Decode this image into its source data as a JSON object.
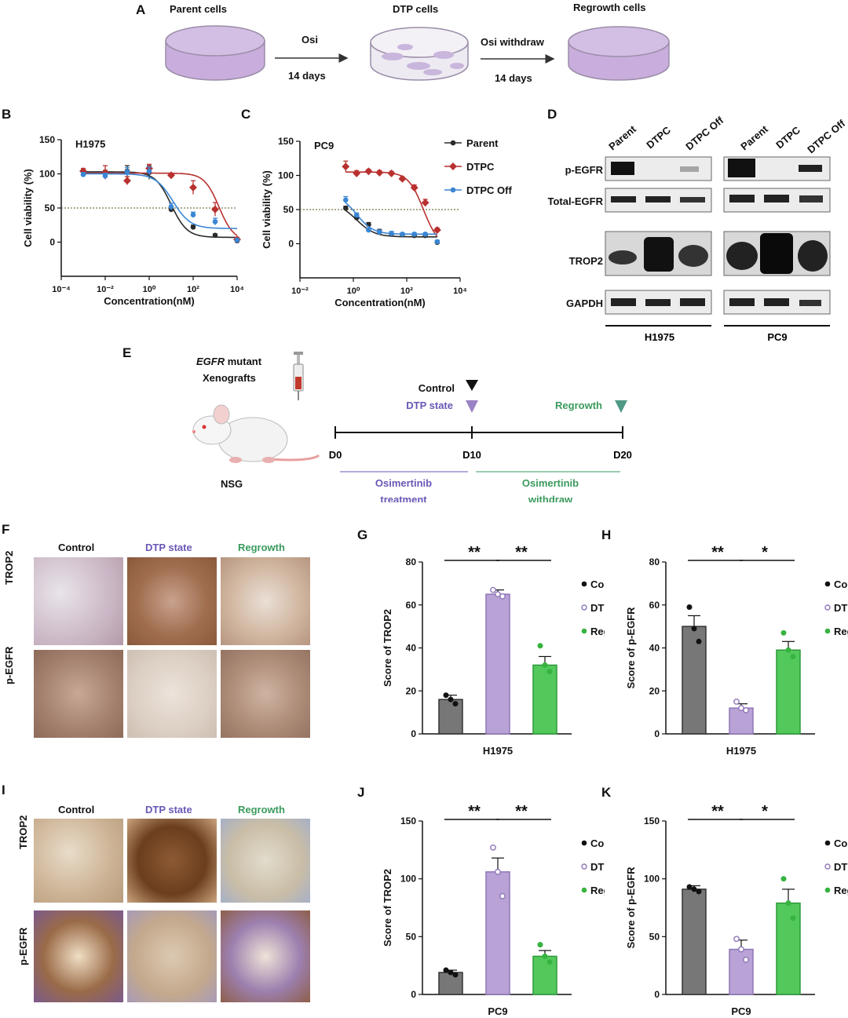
{
  "colors": {
    "parent": "#2b2b2b",
    "dtpc": "#b8312f",
    "dtpc_off": "#3a86d4",
    "control": "#777777",
    "dtp": "#b9a2d6",
    "regrowth": "#52c95a",
    "dtp_text": "#6a57b5",
    "regrowth_text": "#3a9a5c",
    "dish": "#c9addc"
  },
  "panel_a": {
    "letter": "A",
    "stage1": "Parent cells",
    "stage2": "DTP cells",
    "stage3": "Regrowth cells",
    "arrow1_top": "Osi",
    "arrow1_bottom": "14 days",
    "arrow2_top": "Osi withdraw",
    "arrow2_bottom": "14 days"
  },
  "panel_b": {
    "letter": "B"
  },
  "panel_c": {
    "letter": "C"
  },
  "panel_d": {
    "letter": "D",
    "lane_labels": [
      "Parent",
      "DTPC",
      "DTPC Off",
      "Parent",
      "DTPC",
      "DTPC Off"
    ],
    "row_labels": [
      "p-EGFR",
      "Total-EGFR",
      "TROP2",
      "GAPDH"
    ],
    "group_labels": [
      "H1975",
      "PC9"
    ]
  },
  "panel_e": {
    "letter": "E",
    "model_title_italic": "EGFR",
    "model_title_rest": " mutant",
    "model_title_line2": "Xenografts",
    "mouse_label": "NSG",
    "markers": [
      "Control",
      "DTP state",
      "Regrowth"
    ],
    "ticks": [
      "D0",
      "D10",
      "D20"
    ],
    "phase1_line1": "Osimertinib",
    "phase1_line2": "treatment",
    "phase2_line1": "Osimertinib",
    "phase2_line2": "withdraw"
  },
  "panel_f": {
    "letter": "F",
    "columns": [
      "Control",
      "DTP state",
      "Regrowth"
    ],
    "rows": [
      "TROP2",
      "p-EGFR"
    ]
  },
  "panel_i": {
    "letter": "I",
    "columns": [
      "Control",
      "DTP state",
      "Regrowth"
    ],
    "rows": [
      "TROP2",
      "p-EGFR"
    ]
  },
  "legend_bar": [
    "Control",
    "DTP state",
    "Regrowth"
  ],
  "chart_data": [
    {
      "panel": "B",
      "type": "scatter",
      "title": "H1975",
      "xlabel": "Concentration(nM)",
      "ylabel": "Cell viability (%)",
      "xscale": "log",
      "xlim": [
        0.0001,
        10000
      ],
      "ylim": [
        -50,
        150
      ],
      "x_ticks": [
        "10⁻⁴",
        "10⁻²",
        "10⁰",
        "10²",
        "10⁴"
      ],
      "y_ticks": [
        "0",
        "50",
        "100",
        "150"
      ],
      "reference_line": 50,
      "series": [
        {
          "name": "Parent",
          "x": [
            0.001,
            0.01,
            0.1,
            1,
            10,
            100,
            1000,
            10000
          ],
          "y": [
            103,
            101,
            104,
            102,
            48,
            22,
            10,
            2
          ],
          "err": [
            3,
            4,
            8,
            10,
            4,
            3,
            2,
            2
          ],
          "fit": {
            "ic50": 10,
            "hill": 1.2,
            "top": 103,
            "bottom": 7
          }
        },
        {
          "name": "DTPC",
          "x": [
            0.001,
            0.01,
            0.1,
            1,
            10,
            100,
            1000,
            10000
          ],
          "y": [
            104,
            102,
            90,
            108,
            98,
            80,
            48,
            4
          ],
          "err": [
            4,
            10,
            6,
            6,
            3,
            10,
            10,
            3
          ],
          "fit": {
            "ic50": 1500,
            "hill": 1.3,
            "top": 101,
            "bottom": 2
          }
        },
        {
          "name": "DTPC Off",
          "x": [
            0.001,
            0.01,
            0.1,
            1,
            10,
            100,
            1000,
            10000
          ],
          "y": [
            99,
            97,
            103,
            104,
            52,
            40,
            30,
            3
          ],
          "err": [
            3,
            4,
            6,
            6,
            5,
            4,
            5,
            2
          ],
          "fit": {
            "ic50": 12,
            "hill": 1.1,
            "top": 100,
            "bottom": 20
          }
        }
      ]
    },
    {
      "panel": "C",
      "type": "scatter",
      "title": "PC9",
      "xlabel": "Concentration(nM)",
      "ylabel": "Cell viability (%)",
      "xscale": "log",
      "xlim": [
        0.01,
        100000
      ],
      "ylim": [
        -50,
        150
      ],
      "x_ticks": [
        "10⁻²",
        "10⁰",
        "10²",
        "10⁴"
      ],
      "y_ticks": [
        "0",
        "50",
        "100",
        "150"
      ],
      "reference_line": 50,
      "series": [
        {
          "name": "Parent",
          "x": [
            1,
            3,
            10,
            30,
            100,
            300,
            1000,
            3000,
            10000
          ],
          "y": [
            52,
            38,
            28,
            18,
            14,
            13,
            12,
            12,
            2
          ],
          "err": [
            3,
            3,
            3,
            3,
            2,
            2,
            2,
            2,
            2
          ],
          "fit": {
            "ic50": 3,
            "hill": 1.1,
            "top": 60,
            "bottom": 10
          }
        },
        {
          "name": "DTPC",
          "x": [
            1,
            3,
            10,
            30,
            100,
            300,
            1000,
            3000,
            10000
          ],
          "y": [
            113,
            103,
            106,
            104,
            103,
            95,
            82,
            60,
            20
          ],
          "err": [
            8,
            4,
            3,
            3,
            3,
            3,
            4,
            5,
            3
          ],
          "fit": {
            "ic50": 2500,
            "hill": 1.3,
            "top": 105,
            "bottom": -5
          }
        },
        {
          "name": "DTPC Off",
          "x": [
            1,
            3,
            10,
            30,
            100,
            300,
            1000,
            3000,
            10000
          ],
          "y": [
            64,
            42,
            20,
            17,
            15,
            14,
            14,
            14,
            3
          ],
          "err": [
            5,
            3,
            3,
            3,
            3,
            2,
            2,
            2,
            2
          ],
          "fit": {
            "ic50": 3,
            "hill": 1.2,
            "top": 72,
            "bottom": 14
          }
        }
      ],
      "legend": [
        "Parent",
        "DTPC",
        "DTPC Off"
      ]
    },
    {
      "panel": "G",
      "type": "bar",
      "xlabel": "H1975",
      "ylabel": "Score of TROP2",
      "categories": [
        "Control",
        "DTP state",
        "Regrowth"
      ],
      "values": [
        16,
        65,
        32
      ],
      "err": [
        2,
        2,
        4
      ],
      "points": [
        [
          18,
          16,
          14
        ],
        [
          67,
          65,
          64
        ],
        [
          41,
          32,
          29
        ]
      ],
      "ylim": [
        0,
        80
      ],
      "y_ticks": [
        "0",
        "20",
        "40",
        "60",
        "80"
      ],
      "significance": [
        {
          "from": 0,
          "to": 1,
          "label": "**"
        },
        {
          "from": 1,
          "to": 2,
          "label": "**"
        }
      ]
    },
    {
      "panel": "H",
      "type": "bar",
      "xlabel": "H1975",
      "ylabel": "Score of p-EGFR",
      "categories": [
        "Control",
        "DTP state",
        "Regrowth"
      ],
      "values": [
        50,
        12,
        39
      ],
      "err": [
        5,
        2,
        4
      ],
      "points": [
        [
          59,
          49,
          43
        ],
        [
          15,
          12,
          11
        ],
        [
          47,
          39,
          36
        ]
      ],
      "ylim": [
        0,
        80
      ],
      "y_ticks": [
        "0",
        "20",
        "40",
        "60",
        "80"
      ],
      "significance": [
        {
          "from": 0,
          "to": 1,
          "label": "**"
        },
        {
          "from": 1,
          "to": 2,
          "label": "*"
        }
      ]
    },
    {
      "panel": "J",
      "type": "bar",
      "xlabel": "PC9",
      "ylabel": "Score of TROP2",
      "categories": [
        "Control",
        "DTP state",
        "Regrowth"
      ],
      "values": [
        19,
        106,
        33
      ],
      "err": [
        2,
        12,
        5
      ],
      "points": [
        [
          21,
          19,
          17
        ],
        [
          127,
          106,
          85
        ],
        [
          43,
          33,
          28
        ]
      ],
      "ylim": [
        0,
        150
      ],
      "y_ticks": [
        "0",
        "50",
        "100",
        "150"
      ],
      "significance": [
        {
          "from": 0,
          "to": 1,
          "label": "**"
        },
        {
          "from": 1,
          "to": 2,
          "label": "**"
        }
      ]
    },
    {
      "panel": "K",
      "type": "bar",
      "xlabel": "PC9",
      "ylabel": "Score of p-EGFR",
      "categories": [
        "Control",
        "DTP state",
        "Regrowth"
      ],
      "values": [
        91,
        39,
        79
      ],
      "err": [
        3,
        8,
        12
      ],
      "points": [
        [
          93,
          91,
          89
        ],
        [
          48,
          39,
          30
        ],
        [
          100,
          79,
          66
        ]
      ],
      "ylim": [
        0,
        150
      ],
      "y_ticks": [
        "0",
        "50",
        "100",
        "150"
      ],
      "significance": [
        {
          "from": 0,
          "to": 1,
          "label": "**"
        },
        {
          "from": 1,
          "to": 2,
          "label": "*"
        }
      ]
    }
  ]
}
